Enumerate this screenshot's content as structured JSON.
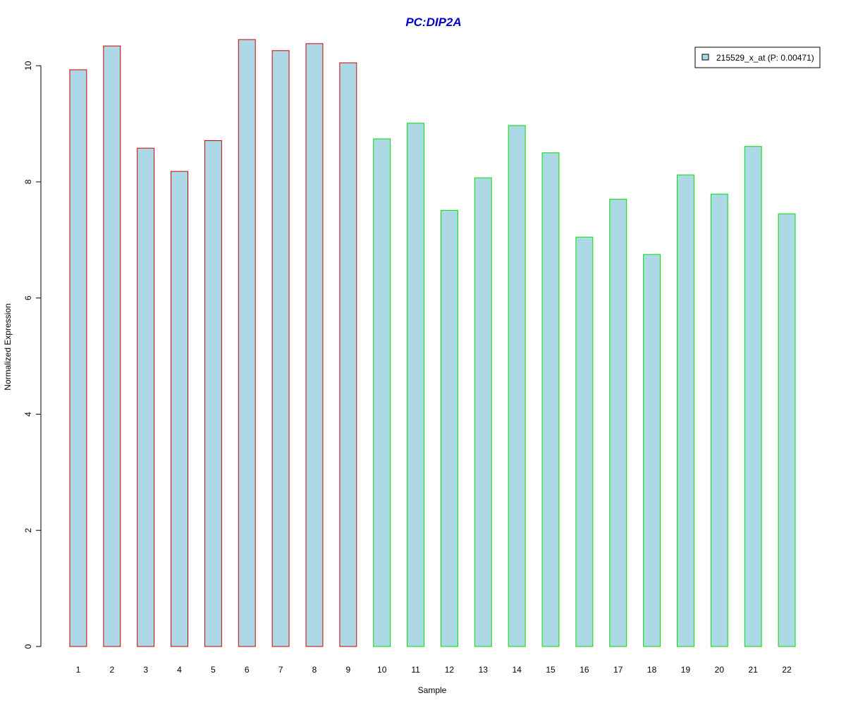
{
  "chart_data": {
    "type": "bar",
    "title": "PC:DIP2A",
    "xlabel": "Sample",
    "ylabel": "Normalized Expression",
    "ylim": [
      0,
      10.5
    ],
    "yticks": [
      0,
      2,
      4,
      6,
      8,
      10
    ],
    "categories": [
      "1",
      "2",
      "3",
      "4",
      "5",
      "6",
      "7",
      "8",
      "9",
      "10",
      "11",
      "12",
      "13",
      "14",
      "15",
      "16",
      "17",
      "18",
      "19",
      "20",
      "21",
      "22"
    ],
    "values": [
      9.93,
      10.34,
      8.58,
      8.18,
      8.71,
      10.45,
      10.26,
      10.38,
      10.05,
      8.74,
      9.01,
      7.51,
      8.07,
      8.97,
      8.5,
      7.05,
      7.7,
      6.75,
      8.12,
      7.79,
      8.61,
      7.45
    ],
    "group": [
      "a",
      "a",
      "a",
      "a",
      "a",
      "a",
      "a",
      "a",
      "a",
      "b",
      "b",
      "b",
      "b",
      "b",
      "b",
      "b",
      "b",
      "b",
      "b",
      "b",
      "b",
      "b"
    ],
    "legend": {
      "label": "215529_x_at (P: 0.00471)",
      "position": "top-right"
    },
    "colors": {
      "title": "#0000cc",
      "bar_fill": "#add8e6",
      "border_group_a": "#cc0000",
      "border_group_b": "#00dd00",
      "axis": "#000000"
    },
    "grid": false
  }
}
